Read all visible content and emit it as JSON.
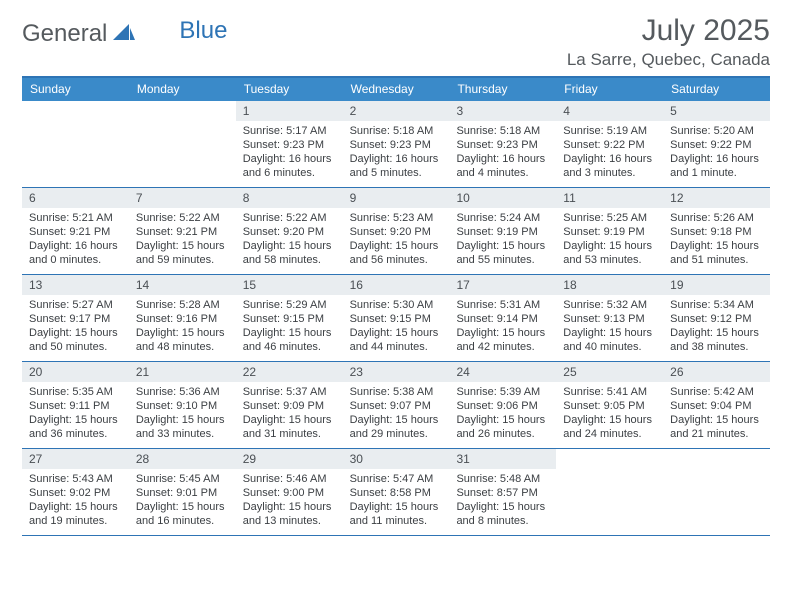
{
  "brand": {
    "text_general": "General",
    "text_blue": "Blue",
    "sail_color": "#2e74b5",
    "general_color": "#555a5e"
  },
  "header": {
    "month_title": "July 2025",
    "location": "La Sarre, Quebec, Canada",
    "title_color": "#555a5e",
    "title_fontsize": 30,
    "location_fontsize": 17
  },
  "colors": {
    "accent": "#2e74b5",
    "header_bg": "#3a8ac9",
    "header_text": "#ffffff",
    "date_band_bg": "#e9edf0",
    "body_text": "#3b3f43",
    "background": "#ffffff"
  },
  "day_names": [
    "Sunday",
    "Monday",
    "Tuesday",
    "Wednesday",
    "Thursday",
    "Friday",
    "Saturday"
  ],
  "layout": {
    "columns": 7,
    "rows": 5,
    "first_weekday_index": 2,
    "days_in_month": 31,
    "header_fontsize": 12,
    "date_fontsize": 12,
    "body_fontsize": 11
  },
  "days": [
    {
      "date": "1",
      "sunrise": "5:17 AM",
      "sunset": "9:23 PM",
      "daylight": "16 hours and 6 minutes."
    },
    {
      "date": "2",
      "sunrise": "5:18 AM",
      "sunset": "9:23 PM",
      "daylight": "16 hours and 5 minutes."
    },
    {
      "date": "3",
      "sunrise": "5:18 AM",
      "sunset": "9:23 PM",
      "daylight": "16 hours and 4 minutes."
    },
    {
      "date": "4",
      "sunrise": "5:19 AM",
      "sunset": "9:22 PM",
      "daylight": "16 hours and 3 minutes."
    },
    {
      "date": "5",
      "sunrise": "5:20 AM",
      "sunset": "9:22 PM",
      "daylight": "16 hours and 1 minute."
    },
    {
      "date": "6",
      "sunrise": "5:21 AM",
      "sunset": "9:21 PM",
      "daylight": "16 hours and 0 minutes."
    },
    {
      "date": "7",
      "sunrise": "5:22 AM",
      "sunset": "9:21 PM",
      "daylight": "15 hours and 59 minutes."
    },
    {
      "date": "8",
      "sunrise": "5:22 AM",
      "sunset": "9:20 PM",
      "daylight": "15 hours and 58 minutes."
    },
    {
      "date": "9",
      "sunrise": "5:23 AM",
      "sunset": "9:20 PM",
      "daylight": "15 hours and 56 minutes."
    },
    {
      "date": "10",
      "sunrise": "5:24 AM",
      "sunset": "9:19 PM",
      "daylight": "15 hours and 55 minutes."
    },
    {
      "date": "11",
      "sunrise": "5:25 AM",
      "sunset": "9:19 PM",
      "daylight": "15 hours and 53 minutes."
    },
    {
      "date": "12",
      "sunrise": "5:26 AM",
      "sunset": "9:18 PM",
      "daylight": "15 hours and 51 minutes."
    },
    {
      "date": "13",
      "sunrise": "5:27 AM",
      "sunset": "9:17 PM",
      "daylight": "15 hours and 50 minutes."
    },
    {
      "date": "14",
      "sunrise": "5:28 AM",
      "sunset": "9:16 PM",
      "daylight": "15 hours and 48 minutes."
    },
    {
      "date": "15",
      "sunrise": "5:29 AM",
      "sunset": "9:15 PM",
      "daylight": "15 hours and 46 minutes."
    },
    {
      "date": "16",
      "sunrise": "5:30 AM",
      "sunset": "9:15 PM",
      "daylight": "15 hours and 44 minutes."
    },
    {
      "date": "17",
      "sunrise": "5:31 AM",
      "sunset": "9:14 PM",
      "daylight": "15 hours and 42 minutes."
    },
    {
      "date": "18",
      "sunrise": "5:32 AM",
      "sunset": "9:13 PM",
      "daylight": "15 hours and 40 minutes."
    },
    {
      "date": "19",
      "sunrise": "5:34 AM",
      "sunset": "9:12 PM",
      "daylight": "15 hours and 38 minutes."
    },
    {
      "date": "20",
      "sunrise": "5:35 AM",
      "sunset": "9:11 PM",
      "daylight": "15 hours and 36 minutes."
    },
    {
      "date": "21",
      "sunrise": "5:36 AM",
      "sunset": "9:10 PM",
      "daylight": "15 hours and 33 minutes."
    },
    {
      "date": "22",
      "sunrise": "5:37 AM",
      "sunset": "9:09 PM",
      "daylight": "15 hours and 31 minutes."
    },
    {
      "date": "23",
      "sunrise": "5:38 AM",
      "sunset": "9:07 PM",
      "daylight": "15 hours and 29 minutes."
    },
    {
      "date": "24",
      "sunrise": "5:39 AM",
      "sunset": "9:06 PM",
      "daylight": "15 hours and 26 minutes."
    },
    {
      "date": "25",
      "sunrise": "5:41 AM",
      "sunset": "9:05 PM",
      "daylight": "15 hours and 24 minutes."
    },
    {
      "date": "26",
      "sunrise": "5:42 AM",
      "sunset": "9:04 PM",
      "daylight": "15 hours and 21 minutes."
    },
    {
      "date": "27",
      "sunrise": "5:43 AM",
      "sunset": "9:02 PM",
      "daylight": "15 hours and 19 minutes."
    },
    {
      "date": "28",
      "sunrise": "5:45 AM",
      "sunset": "9:01 PM",
      "daylight": "15 hours and 16 minutes."
    },
    {
      "date": "29",
      "sunrise": "5:46 AM",
      "sunset": "9:00 PM",
      "daylight": "15 hours and 13 minutes."
    },
    {
      "date": "30",
      "sunrise": "5:47 AM",
      "sunset": "8:58 PM",
      "daylight": "15 hours and 11 minutes."
    },
    {
      "date": "31",
      "sunrise": "5:48 AM",
      "sunset": "8:57 PM",
      "daylight": "15 hours and 8 minutes."
    }
  ],
  "labels": {
    "sunrise_prefix": "Sunrise: ",
    "sunset_prefix": "Sunset: ",
    "daylight_prefix": "Daylight: "
  }
}
